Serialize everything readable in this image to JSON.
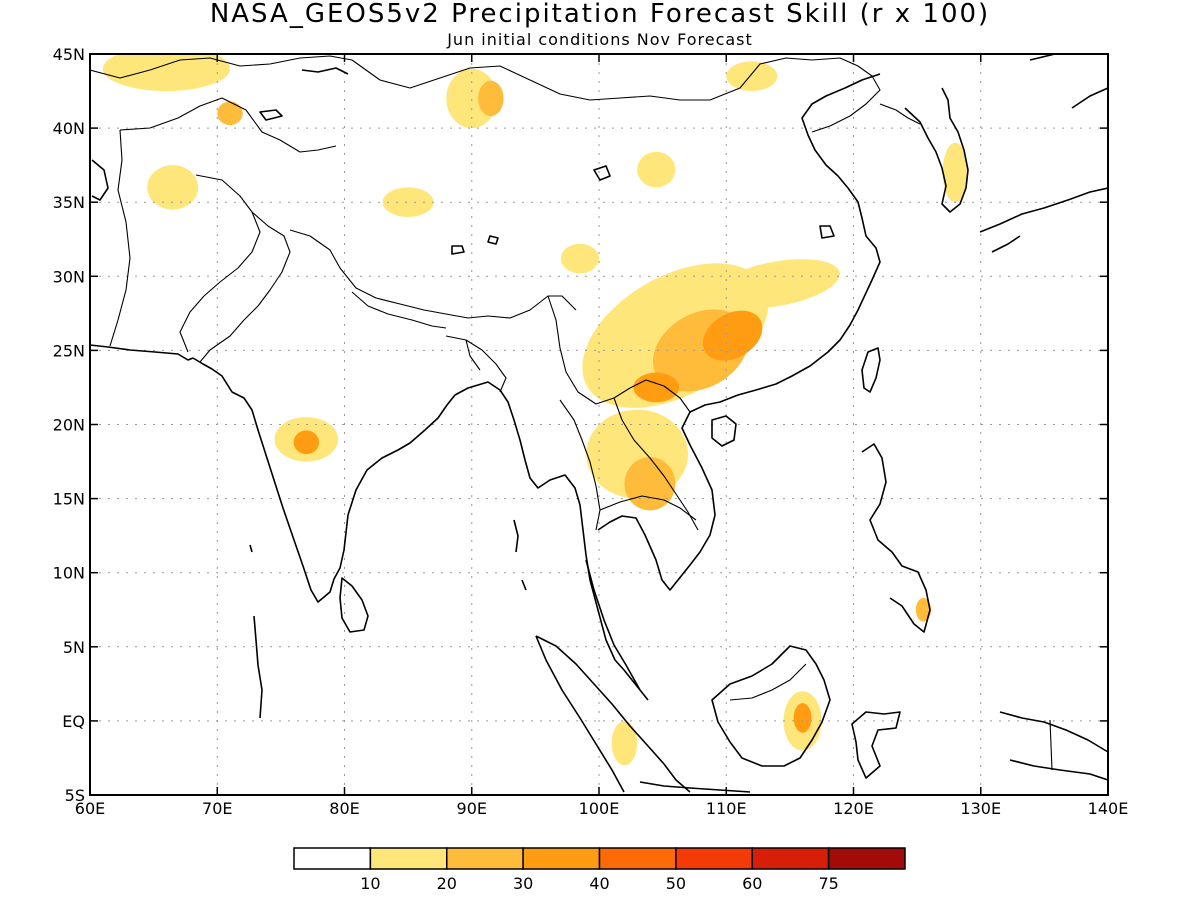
{
  "title": "NASA_GEOS5v2 Precipitation Forecast Skill (r x 100)",
  "subtitle": "Jun initial conditions  Nov Forecast",
  "chart_data": {
    "type": "heatmap",
    "x_range": [
      60,
      140
    ],
    "y_range": [
      -5,
      45
    ],
    "lon_ticks": [
      {
        "lon": 60,
        "label": "60E"
      },
      {
        "lon": 70,
        "label": "70E"
      },
      {
        "lon": 80,
        "label": "80E"
      },
      {
        "lon": 90,
        "label": "90E"
      },
      {
        "lon": 100,
        "label": "100E"
      },
      {
        "lon": 110,
        "label": "110E"
      },
      {
        "lon": 120,
        "label": "120E"
      },
      {
        "lon": 130,
        "label": "130E"
      },
      {
        "lon": 140,
        "label": "140E"
      }
    ],
    "lat_ticks": [
      {
        "lat": 45,
        "label": "45N"
      },
      {
        "lat": 40,
        "label": "40N"
      },
      {
        "lat": 35,
        "label": "35N"
      },
      {
        "lat": 30,
        "label": "30N"
      },
      {
        "lat": 25,
        "label": "25N"
      },
      {
        "lat": 20,
        "label": "20N"
      },
      {
        "lat": 15,
        "label": "15N"
      },
      {
        "lat": 10,
        "label": "10N"
      },
      {
        "lat": 5,
        "label": "5N"
      },
      {
        "lat": 0,
        "label": "EQ"
      },
      {
        "lat": -5,
        "label": "5S"
      }
    ],
    "grid": true,
    "legend_position": "bottom",
    "colorbar": {
      "levels": [
        "10",
        "20",
        "30",
        "40",
        "50",
        "60",
        "75"
      ],
      "colors": [
        "#ffffff",
        "#ffe67a",
        "#ffbb3a",
        "#ff9c12",
        "#ff6a08",
        "#f43a06",
        "#d81e08",
        "#a10c08"
      ]
    },
    "regions": [
      {
        "lon": 106,
        "lat": 26,
        "rx": 8,
        "ry": 4,
        "rot": -30,
        "level": 1
      },
      {
        "lon": 108,
        "lat": 25,
        "rx": 4,
        "ry": 2.5,
        "rot": -30,
        "level": 2
      },
      {
        "lon": 110.5,
        "lat": 26,
        "rx": 2.5,
        "ry": 1.5,
        "rot": -30,
        "level": 3
      },
      {
        "lon": 114,
        "lat": 29.5,
        "rx": 5,
        "ry": 1.5,
        "rot": -10,
        "level": 1
      },
      {
        "lon": 103,
        "lat": 18,
        "rx": 4,
        "ry": 3,
        "rot": 0,
        "level": 1
      },
      {
        "lon": 104,
        "lat": 16,
        "rx": 2,
        "ry": 1.8,
        "rot": 0,
        "level": 2
      },
      {
        "lon": 104.5,
        "lat": 22.5,
        "rx": 1.8,
        "ry": 1,
        "rot": 0,
        "level": 3
      },
      {
        "lon": 77,
        "lat": 19,
        "rx": 2.5,
        "ry": 1.5,
        "rot": 0,
        "level": 1
      },
      {
        "lon": 77,
        "lat": 18.8,
        "rx": 1,
        "ry": 0.8,
        "rot": 0,
        "level": 3
      },
      {
        "lon": 116,
        "lat": 0,
        "rx": 1.5,
        "ry": 2,
        "rot": 0,
        "level": 1
      },
      {
        "lon": 116,
        "lat": 0.2,
        "rx": 0.7,
        "ry": 1,
        "rot": 0,
        "level": 3
      },
      {
        "lon": 90,
        "lat": 42,
        "rx": 2,
        "ry": 2,
        "rot": 0,
        "level": 1
      },
      {
        "lon": 91.5,
        "lat": 42,
        "rx": 1,
        "ry": 1.2,
        "rot": 0,
        "level": 2
      },
      {
        "lon": 104.5,
        "lat": 37.2,
        "rx": 1.5,
        "ry": 1.2,
        "rot": 0,
        "level": 1
      },
      {
        "lon": 66,
        "lat": 44,
        "rx": 5,
        "ry": 1.5,
        "rot": 0,
        "level": 1
      },
      {
        "lon": 71,
        "lat": 41,
        "rx": 1,
        "ry": 0.8,
        "rot": 0,
        "level": 2
      },
      {
        "lon": 98.5,
        "lat": 31.2,
        "rx": 1.5,
        "ry": 1,
        "rot": 0,
        "level": 1
      },
      {
        "lon": 66.5,
        "lat": 36,
        "rx": 2,
        "ry": 1.5,
        "rot": 0,
        "level": 1
      },
      {
        "lon": 85,
        "lat": 35,
        "rx": 2,
        "ry": 1,
        "rot": 0,
        "level": 1
      },
      {
        "lon": 112,
        "lat": 43.5,
        "rx": 2,
        "ry": 1,
        "rot": 0,
        "level": 1
      },
      {
        "lon": 128,
        "lat": 37,
        "rx": 1,
        "ry": 2,
        "rot": 0,
        "level": 1
      },
      {
        "lon": 125.5,
        "lat": 7.5,
        "rx": 0.6,
        "ry": 0.8,
        "rot": 0,
        "level": 2
      },
      {
        "lon": 102,
        "lat": -1.5,
        "rx": 1,
        "ry": 1.5,
        "rot": 0,
        "level": 1
      }
    ]
  }
}
